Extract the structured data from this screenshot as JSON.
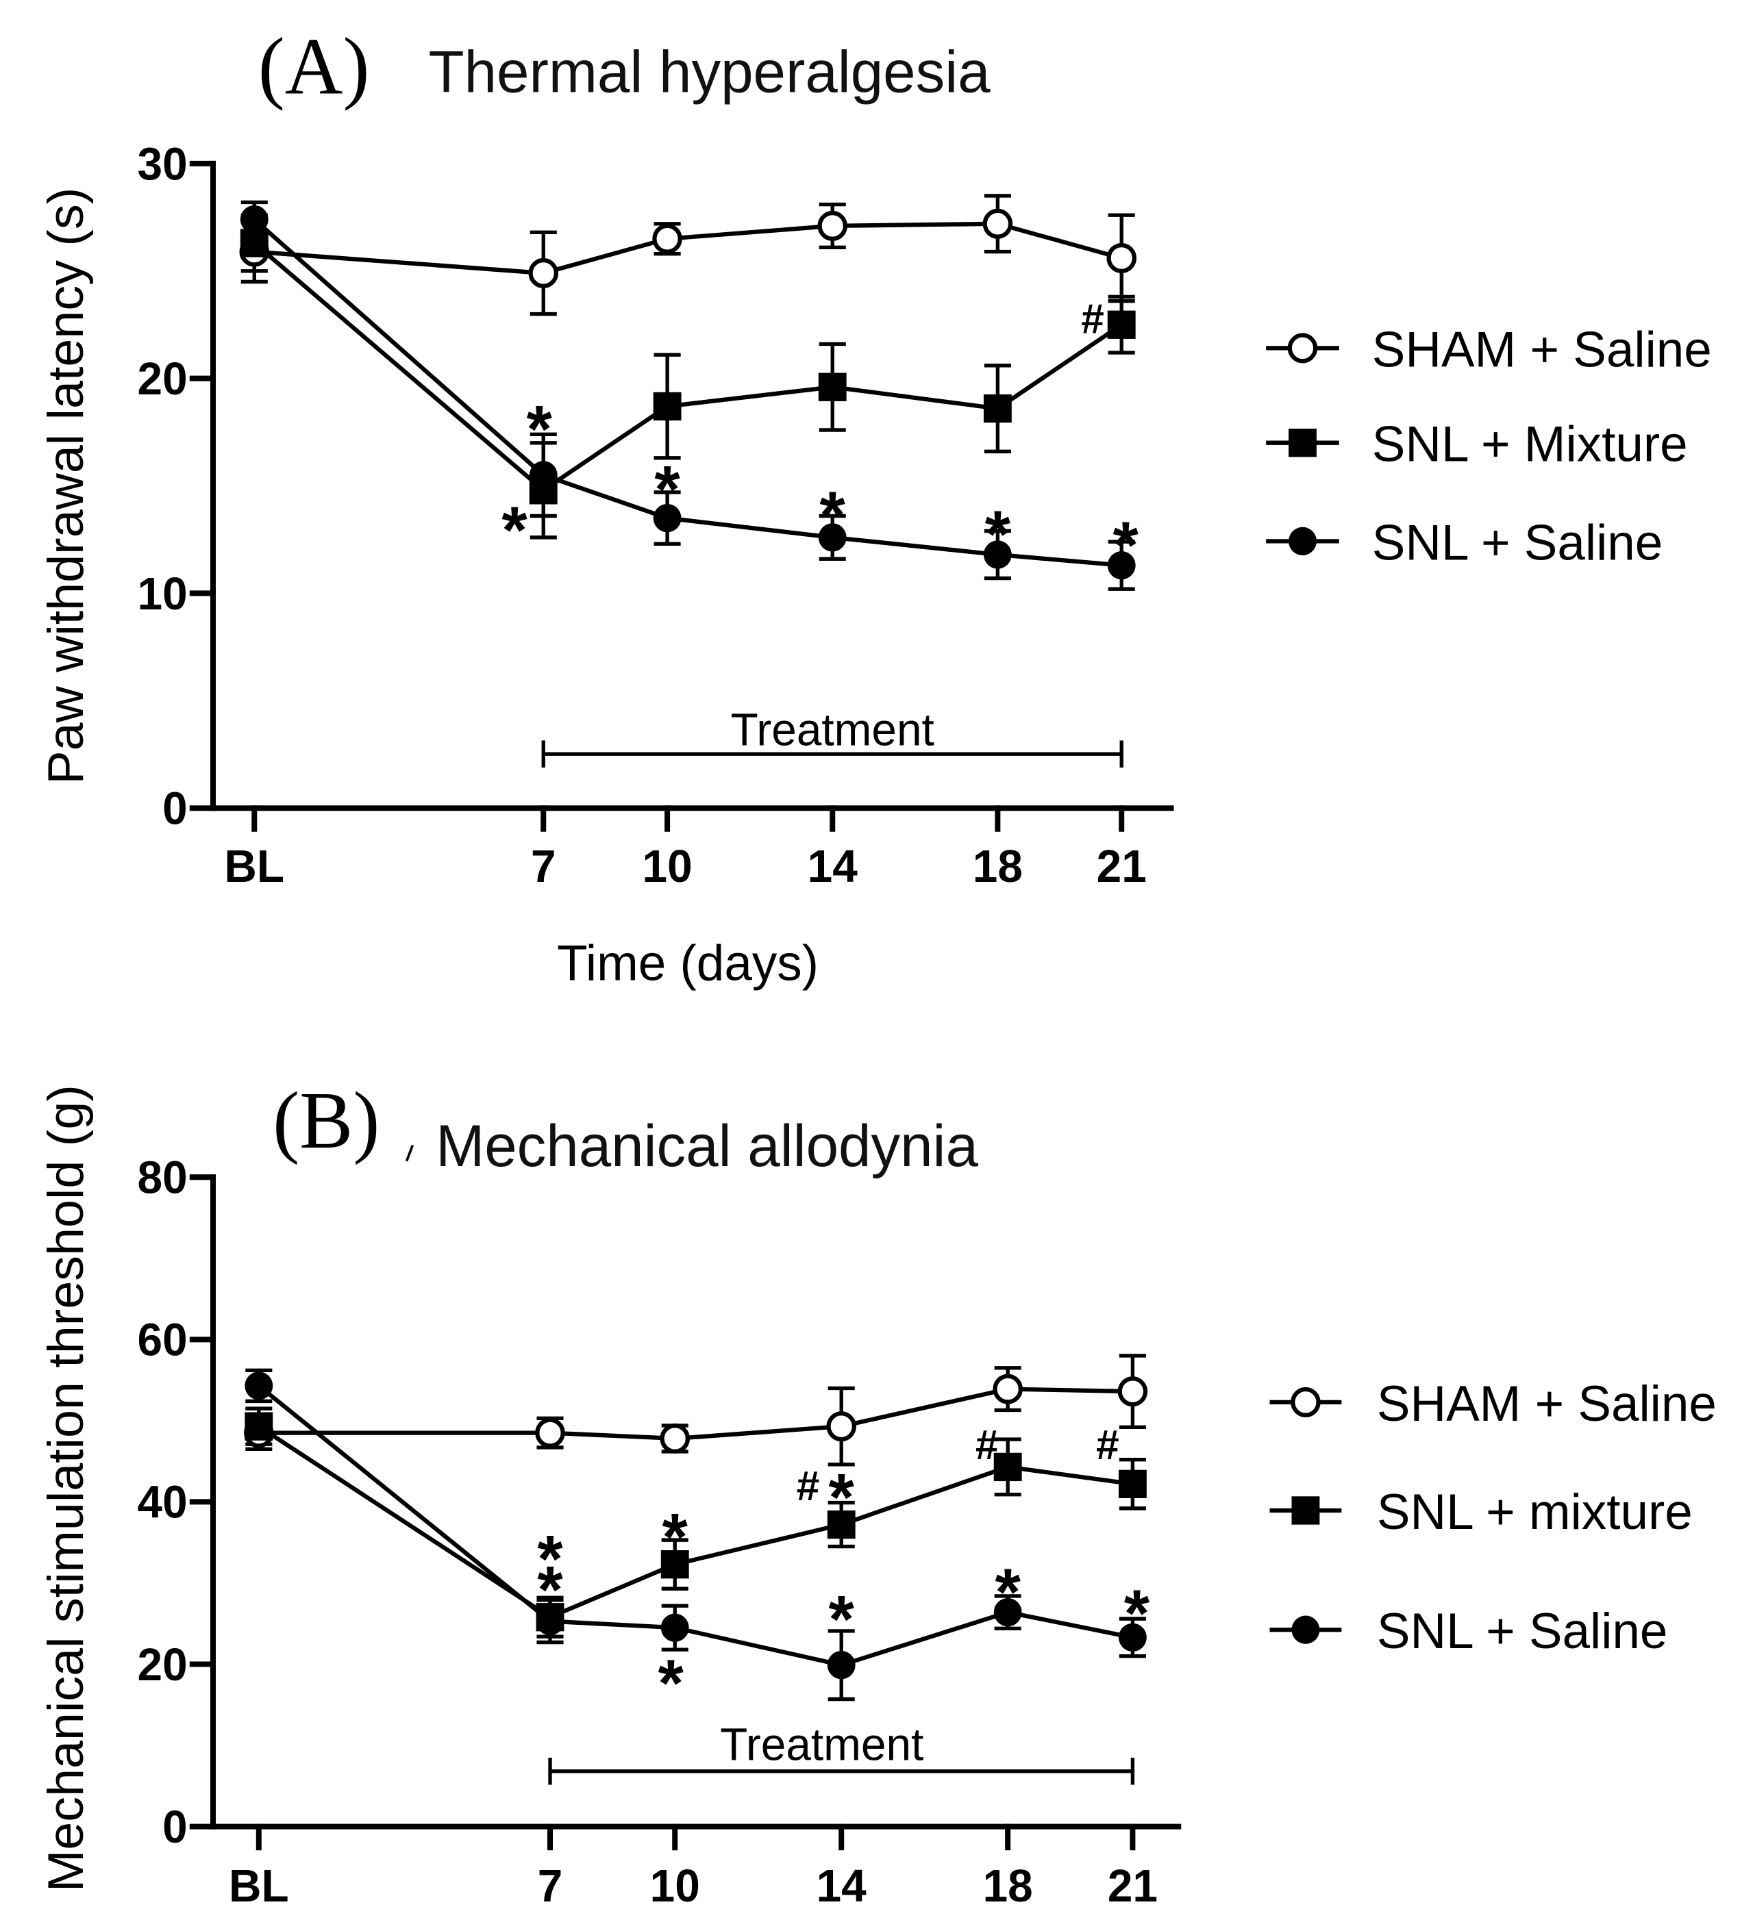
{
  "colors": {
    "ink": "#000000",
    "marker_fill_open": "#ffffff",
    "background": "#ffffff"
  },
  "chart_data": [
    {
      "type": "line",
      "panel_label": "(A)",
      "title": "Thermal hyperalgesia",
      "xlabel": "Time (days)",
      "ylabel": "Paw withdrawal latency (s)",
      "categories": [
        "BL",
        "7",
        "10",
        "14",
        "18",
        "21"
      ],
      "x": [
        0,
        7,
        10,
        14,
        18,
        21
      ],
      "xlim": [
        -1.0,
        22.2
      ],
      "ylim": [
        0,
        30
      ],
      "yticks": [
        0,
        10,
        20,
        30
      ],
      "grid": false,
      "legend_position": "right",
      "treatment": {
        "label": "Treatment",
        "from": 7,
        "to": 21
      },
      "series": [
        {
          "name": "SHAM + Saline",
          "marker": "open-circle",
          "values": [
            25.9,
            24.9,
            26.5,
            27.1,
            27.2,
            25.6
          ],
          "error": [
            1.4,
            1.9,
            0.7,
            1.0,
            1.3,
            2.0
          ]
        },
        {
          "name": "SNL + Mixture",
          "marker": "filled-square",
          "values": [
            26.3,
            14.8,
            18.7,
            19.6,
            18.6,
            22.5
          ],
          "error": [
            1.3,
            2.2,
            2.4,
            2.0,
            2.0,
            1.3
          ]
        },
        {
          "name": "SNL + Saline",
          "marker": "filled-circle",
          "values": [
            27.4,
            15.5,
            13.5,
            12.6,
            11.8,
            11.3
          ],
          "error": [
            0.8,
            1.9,
            1.2,
            1.0,
            1.1,
            1.1
          ]
        }
      ],
      "annotations": [
        {
          "text": "*",
          "x": 6.9,
          "y": 18.3
        },
        {
          "text": "*",
          "x": 6.3,
          "y": 13.6
        },
        {
          "text": "*",
          "x": 10.0,
          "y": 15.5
        },
        {
          "text": "*",
          "x": 14.0,
          "y": 14.3
        },
        {
          "text": "*",
          "x": 18.0,
          "y": 13.4
        },
        {
          "text": "*",
          "x": 21.1,
          "y": 12.9
        },
        {
          "text": "#",
          "x": 20.3,
          "y": 22.8
        }
      ]
    },
    {
      "type": "line",
      "panel_label": "(B)",
      "title": "Mechanical allodynia",
      "xlabel": "",
      "ylabel": "Mechanical stimulation threshold (g)",
      "categories": [
        "BL",
        "7",
        "10",
        "14",
        "18",
        "21"
      ],
      "x": [
        0,
        7,
        10,
        14,
        18,
        21
      ],
      "xlim": [
        -1.1,
        22.1
      ],
      "ylim": [
        0,
        80
      ],
      "yticks": [
        0,
        20,
        40,
        60,
        80
      ],
      "grid": false,
      "legend_position": "right",
      "treatment": {
        "label": "Treatment",
        "from": 7,
        "to": 21
      },
      "series": [
        {
          "name": "SHAM + Saline",
          "marker": "open-circle",
          "values": [
            48.5,
            48.5,
            47.8,
            49.3,
            53.9,
            53.6
          ],
          "error": [
            2.0,
            1.8,
            1.6,
            4.7,
            2.6,
            4.4
          ]
        },
        {
          "name": "SNL + mixture",
          "marker": "filled-square",
          "values": [
            49.3,
            25.8,
            32.3,
            37.2,
            44.3,
            42.2
          ],
          "error": [
            2.2,
            2.4,
            3.0,
            2.7,
            3.4,
            3.0
          ]
        },
        {
          "name": "SNL + Saline",
          "marker": "filled-circle",
          "values": [
            54.3,
            25.3,
            24.5,
            19.9,
            26.4,
            23.3
          ],
          "error": [
            1.9,
            2.6,
            2.7,
            4.2,
            2.0,
            2.3
          ]
        }
      ],
      "annotations": [
        {
          "text": "*",
          "x": 7.0,
          "y": 34.7
        },
        {
          "text": "*",
          "x": 7.0,
          "y": 30.9
        },
        {
          "text": "*",
          "x": 10.0,
          "y": 37.4
        },
        {
          "text": "*",
          "x": 9.9,
          "y": 19.4
        },
        {
          "text": "#",
          "x": 13.2,
          "y": 42.0
        },
        {
          "text": "*",
          "x": 14.0,
          "y": 42.3
        },
        {
          "text": "*",
          "x": 14.0,
          "y": 27.3
        },
        {
          "text": "#",
          "x": 17.5,
          "y": 47.1
        },
        {
          "text": "*",
          "x": 18.0,
          "y": 30.6
        },
        {
          "text": "#",
          "x": 20.4,
          "y": 47.1
        },
        {
          "text": "*",
          "x": 21.1,
          "y": 28.0
        }
      ]
    }
  ]
}
